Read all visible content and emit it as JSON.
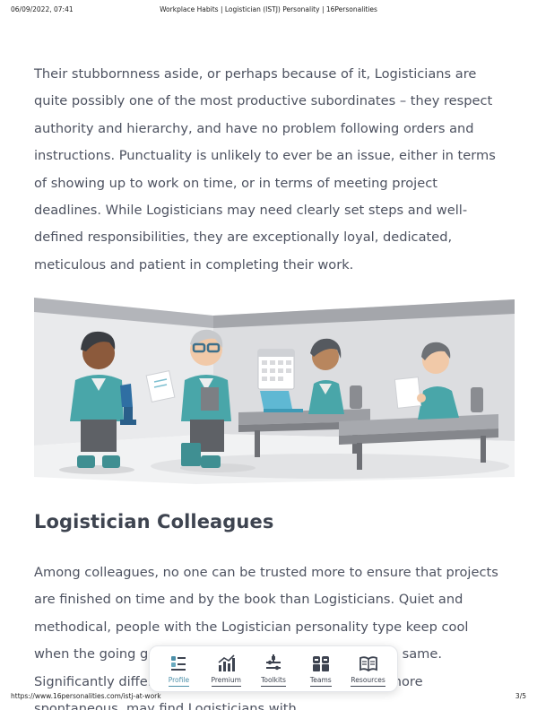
{
  "print_header": {
    "datetime": "06/09/2022, 07:41",
    "page_title": "Workplace Habits | Logistician (ISTJ) Personality | 16Personalities"
  },
  "article": {
    "paragraph_1": "Their stubbornness aside, or perhaps because of it, Logisticians are quite possibly one of the most productive subordinates – they respect authority and hierarchy, and have no problem following orders and instructions. Punctuality is unlikely to ever be an issue, either in terms of showing up to work on time, or in terms of meeting project deadlines. While Logisticians may need clearly set steps and well-defined responsibilities, they are exceptionally loyal, dedicated, meticulous and patient in completing their work.",
    "section_heading": "Logistician Colleagues",
    "paragraph_2": "Among colleagues, no one can be trusted more to ensure that projects are finished on time and by the book than Logisticians. Quiet and methodical, people with the Logistician personality type keep cool when the going gets tough, but expect others to do the same. Significantly different types, especially those who are more spontaneous, may find Logisticians with"
  },
  "toolbar": {
    "items": [
      {
        "label": "Profile",
        "icon": "profile-icon"
      },
      {
        "label": "Premium",
        "icon": "premium-icon"
      },
      {
        "label": "Toolkits",
        "icon": "toolkits-icon"
      },
      {
        "label": "Teams",
        "icon": "teams-icon"
      },
      {
        "label": "Resources",
        "icon": "resources-icon"
      }
    ],
    "active": "Profile"
  },
  "print_footer": {
    "url": "https://www.16personalities.com/istj-at-work",
    "page_number": "3/5"
  }
}
